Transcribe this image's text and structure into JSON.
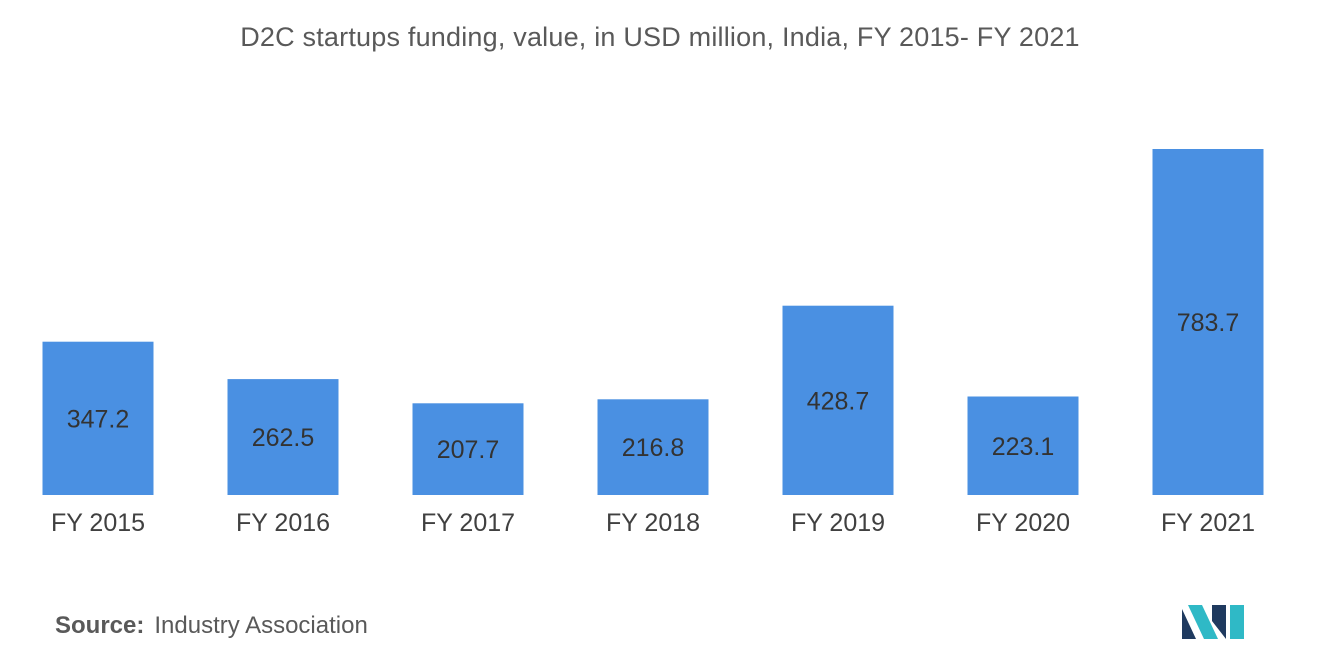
{
  "chart_data": {
    "type": "bar",
    "title": "D2C startups funding, value, in USD million, India, FY 2015- FY 2021",
    "xlabel": "",
    "ylabel": "",
    "categories": [
      "FY 2015",
      "FY 2016",
      "FY 2017",
      "FY 2018",
      "FY 2019",
      "FY 2020",
      "FY 2021"
    ],
    "values": [
      347.2,
      262.5,
      207.7,
      216.8,
      428.7,
      223.1,
      783.7
    ],
    "data_labels": [
      "347.2",
      "262.5",
      "207.7",
      "216.8",
      "428.7",
      "223.1",
      "783.7"
    ],
    "ylim": [
      0,
      783.7
    ],
    "grid": false,
    "legend": "none",
    "bar_color": "#4a90e2"
  },
  "source": {
    "key": "Source:",
    "value": "Industry Association"
  },
  "logo": {
    "icon": "mordor-intelligence-logo-icon",
    "color_dark": "#1f3a5f",
    "color_light": "#2fb9c6"
  }
}
